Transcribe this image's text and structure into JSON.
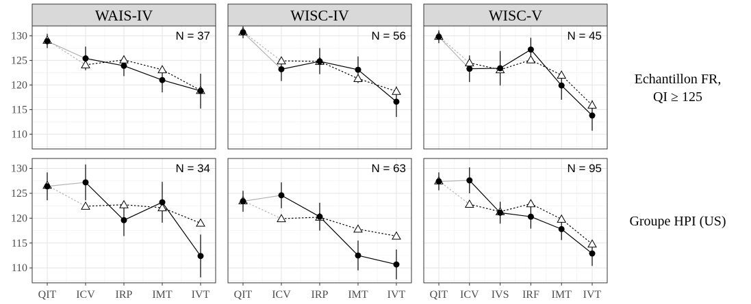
{
  "chart_data": {
    "type": "line",
    "ylim": [
      107,
      132
    ],
    "yticks": [
      110,
      115,
      120,
      125,
      130
    ],
    "grid": true,
    "columns": [
      "WAIS-IV",
      "WISC-IV",
      "WISC-V"
    ],
    "rows": [
      {
        "label_lines": [
          "Echantillon FR,",
          "QI ≥ 125"
        ]
      },
      {
        "label_lines": [
          "Groupe HPI (US)"
        ]
      }
    ],
    "panels": [
      {
        "row": 0,
        "col": 0,
        "n_label": "N = 37",
        "categories": [
          "QIT",
          "ICV",
          "IRP",
          "IMT",
          "IVT"
        ],
        "series": [
          {
            "values": [
              128.9,
              125.4,
              123.9,
              121.0,
              118.8
            ],
            "ci_low": [
              127.5,
              123.0,
              121.8,
              118.5,
              115.2
            ],
            "ci_high": [
              130.4,
              127.8,
              126.0,
              123.5,
              122.3
            ]
          },
          {
            "values": [
              129.1,
              124.1,
              125.1,
              123.1,
              118.9
            ]
          }
        ]
      },
      {
        "row": 0,
        "col": 1,
        "n_label": "N = 56",
        "categories": [
          "QIT",
          "ICV",
          "IRP",
          "IMT",
          "IVT"
        ],
        "series": [
          {
            "values": [
              130.7,
              123.2,
              124.8,
              123.1,
              116.6
            ],
            "ci_low": [
              129.5,
              120.8,
              122.2,
              120.4,
              113.5
            ],
            "ci_high": [
              131.9,
              125.6,
              127.5,
              125.8,
              119.7
            ]
          },
          {
            "values": [
              130.8,
              124.9,
              124.8,
              121.3,
              118.7
            ]
          }
        ]
      },
      {
        "row": 0,
        "col": 2,
        "n_label": "N = 45",
        "categories": [
          "QIT",
          "ICV",
          "IVS",
          "IRF",
          "IMT",
          "IVT"
        ],
        "series": [
          {
            "values": [
              129.8,
              123.3,
              123.4,
              127.2,
              119.9,
              113.8
            ],
            "ci_low": [
              128.5,
              120.6,
              119.9,
              124.8,
              117.0,
              110.7
            ],
            "ci_high": [
              131.1,
              126.0,
              126.9,
              129.6,
              122.8,
              116.9
            ]
          },
          {
            "values": [
              129.9,
              124.5,
              123.1,
              125.1,
              122.0,
              115.9
            ]
          }
        ]
      },
      {
        "row": 1,
        "col": 0,
        "n_label": "N = 34",
        "categories": [
          "QIT",
          "ICV",
          "IRP",
          "IMT",
          "IVT"
        ],
        "series": [
          {
            "values": [
              126.4,
              127.2,
              119.6,
              123.2,
              112.4
            ],
            "ci_low": [
              123.6,
              123.6,
              116.4,
              119.1,
              108.1
            ],
            "ci_high": [
              129.2,
              130.8,
              122.8,
              127.3,
              116.7
            ]
          },
          {
            "values": [
              126.6,
              122.4,
              122.7,
              122.1,
              119.0
            ]
          }
        ]
      },
      {
        "row": 1,
        "col": 1,
        "n_label": "N = 63",
        "categories": [
          "QIT",
          "ICV",
          "IRP",
          "IMT",
          "IVT"
        ],
        "series": [
          {
            "values": [
              123.4,
              124.6,
              120.3,
              112.5,
              110.7
            ],
            "ci_low": [
              121.3,
              122.0,
              117.5,
              109.5,
              107.7
            ],
            "ci_high": [
              125.5,
              127.2,
              123.1,
              115.5,
              113.7
            ]
          },
          {
            "values": [
              123.5,
              119.9,
              120.2,
              117.8,
              116.4
            ]
          }
        ]
      },
      {
        "row": 1,
        "col": 2,
        "n_label": "N = 95",
        "categories": [
          "QIT",
          "ICV",
          "IVS",
          "IRF",
          "IMT",
          "IVT"
        ],
        "series": [
          {
            "values": [
              127.4,
              127.6,
              121.1,
              120.3,
              117.8,
              112.9
            ],
            "ci_low": [
              125.6,
              125.0,
              118.9,
              117.9,
              115.6,
              110.4
            ],
            "ci_high": [
              129.2,
              130.2,
              123.3,
              122.7,
              120.0,
              115.4
            ]
          },
          {
            "values": [
              127.5,
              122.8,
              121.3,
              122.9,
              119.8,
              114.8
            ]
          }
        ]
      }
    ]
  }
}
